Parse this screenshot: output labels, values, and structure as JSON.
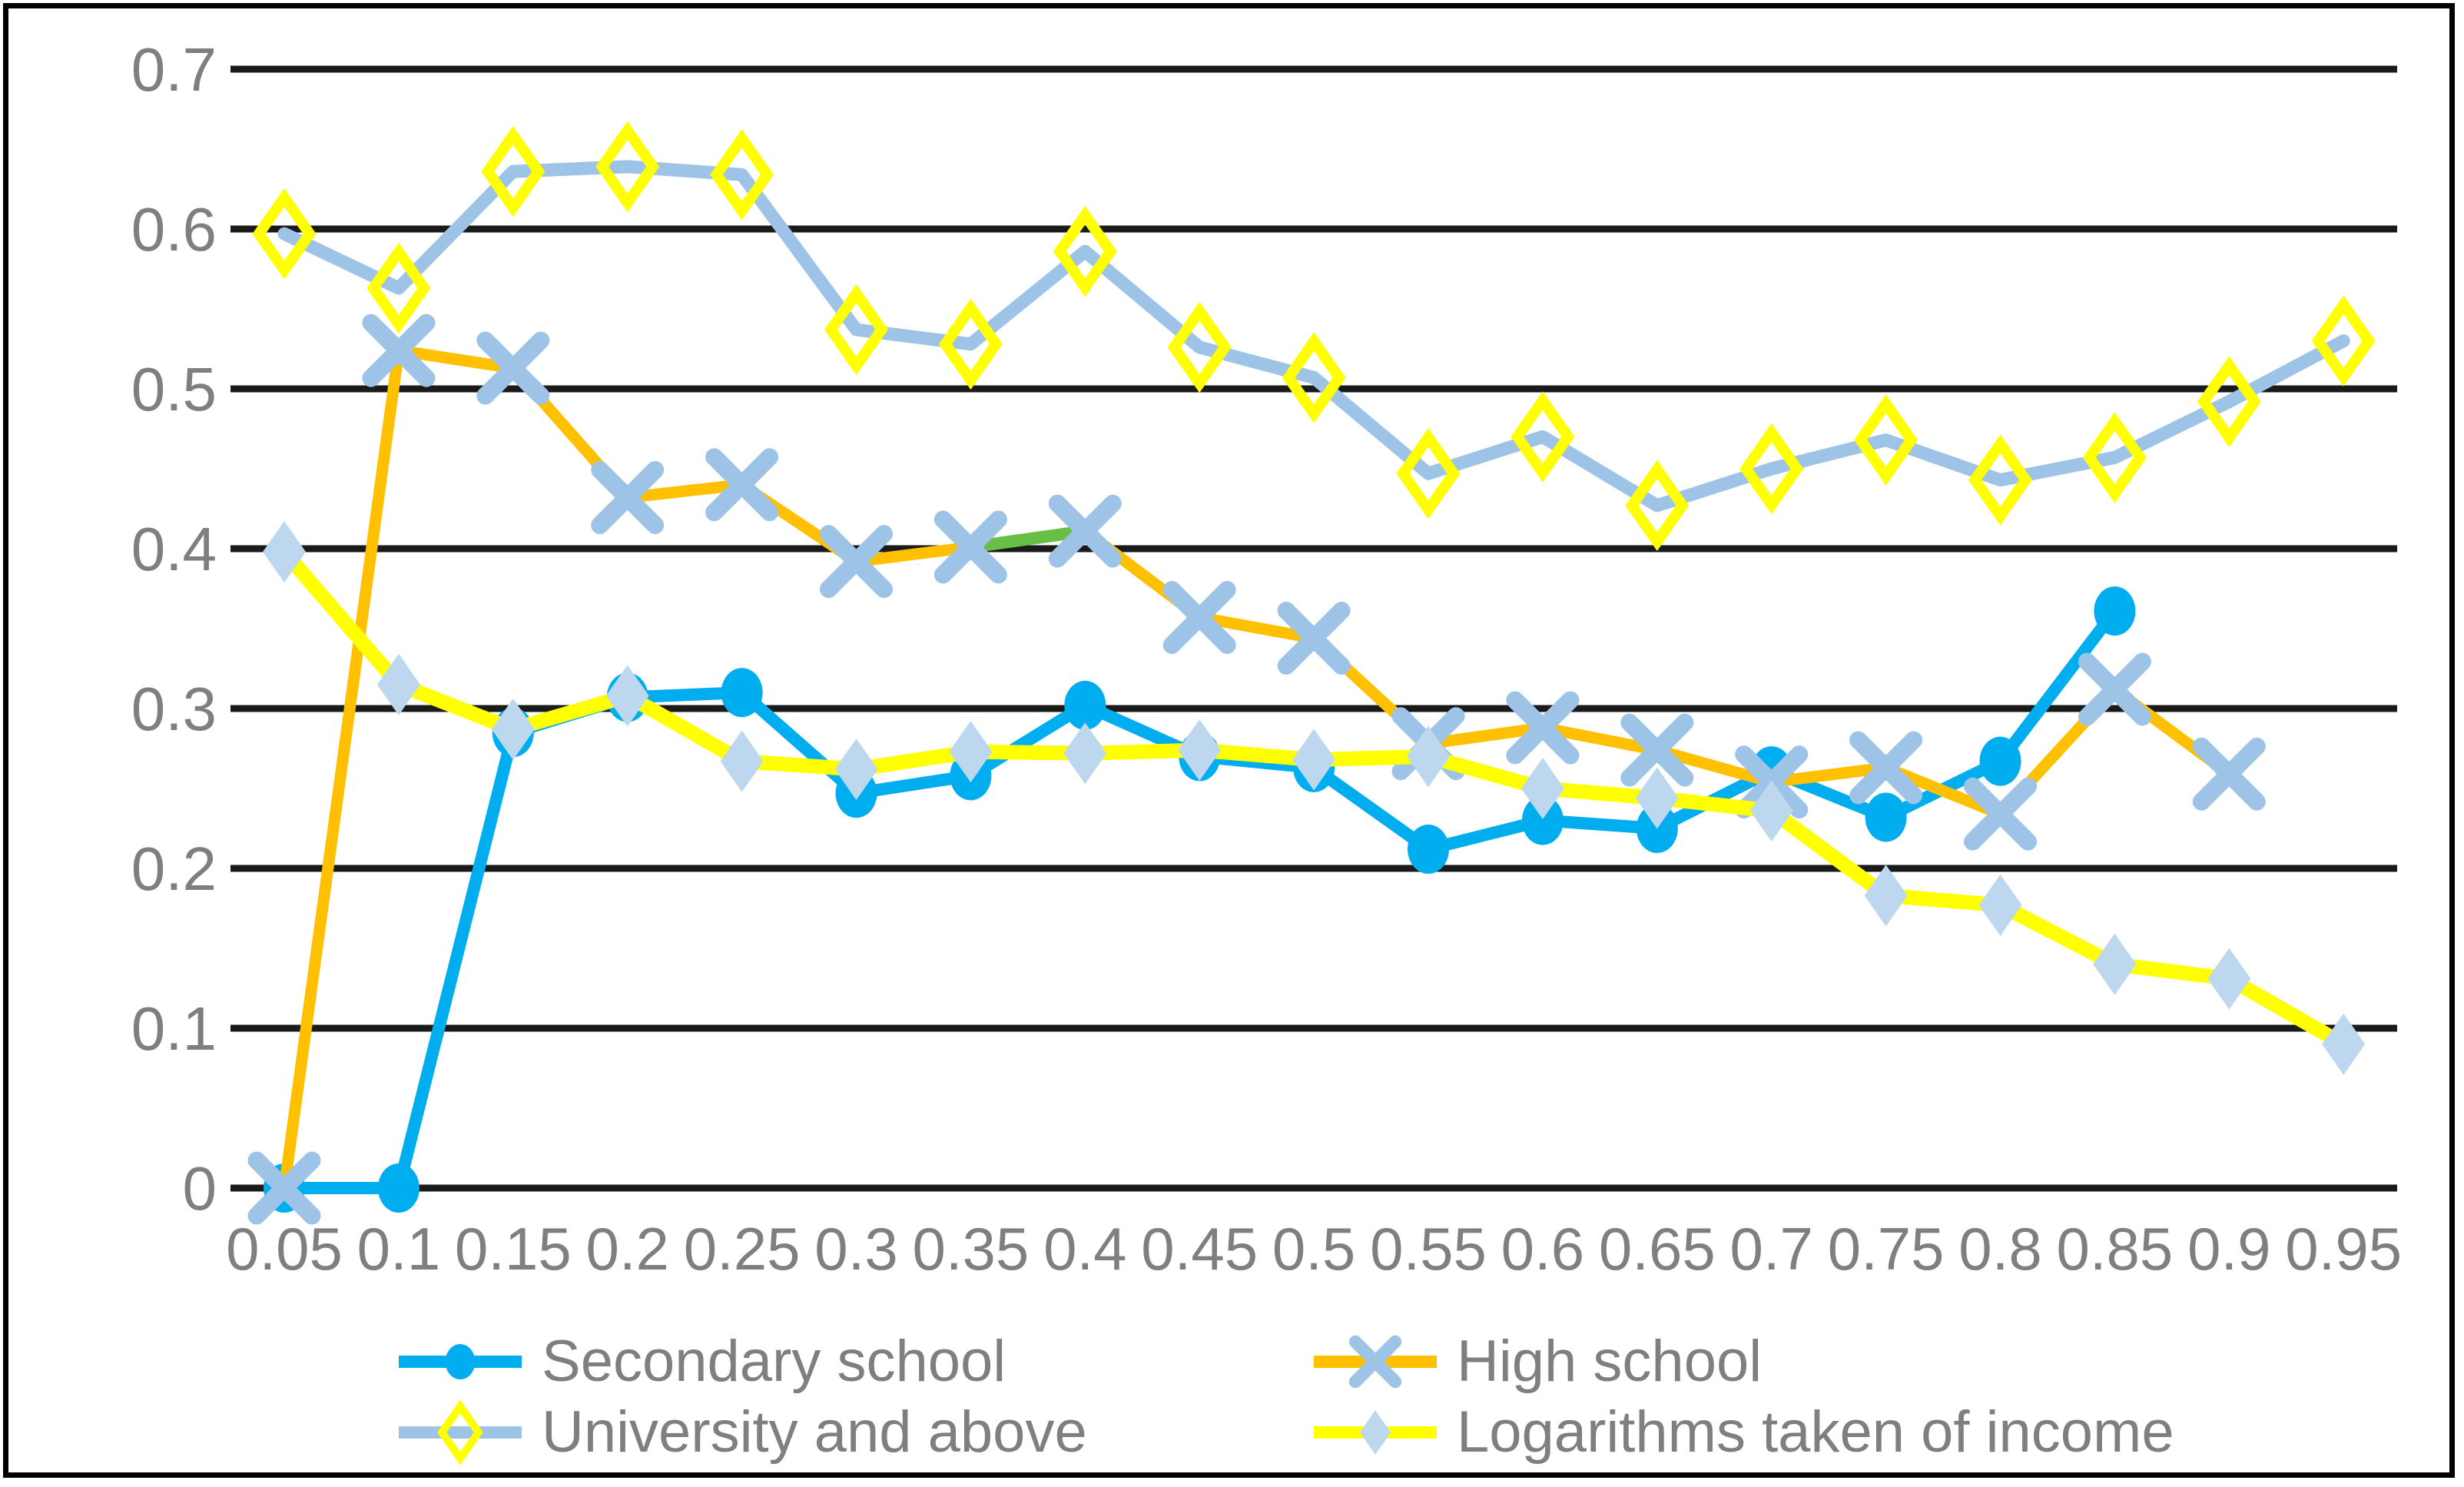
{
  "page": {
    "background_color": "#ffffff",
    "frame_border_color": "#000000"
  },
  "chart_data": {
    "type": "line",
    "title": "",
    "xlabel": "",
    "ylabel": "",
    "grid": "horizontal",
    "gridline_color": "#1a1a1a",
    "axis_text_color": "#7f7f7f",
    "legend_position": "bottom-two-columns",
    "ylim": [
      0,
      0.7
    ],
    "y_ticks": [
      0,
      0.1,
      0.2,
      0.3,
      0.4,
      0.5,
      0.6,
      0.7
    ],
    "y_tick_labels": [
      "0",
      "0.1",
      "0.2",
      "0.3",
      "0.4",
      "0.5",
      "0.6",
      "0.7"
    ],
    "x": [
      0.05,
      0.1,
      0.15,
      0.2,
      0.25,
      0.3,
      0.35,
      0.4,
      0.45,
      0.5,
      0.55,
      0.6,
      0.65,
      0.7,
      0.75,
      0.8,
      0.85,
      0.9,
      0.95
    ],
    "x_tick_labels": [
      "0.05",
      "0.1",
      "0.15",
      "0.2",
      "0.25",
      "0.3",
      "0.35",
      "0.4",
      "0.45",
      "0.5",
      "0.55",
      "0.6",
      "0.65",
      "0.7",
      "0.75",
      "0.8",
      "0.85",
      "0.9",
      "0.95"
    ],
    "series": [
      {
        "name": "Secondary school",
        "line_color": "#00AEEF",
        "marker": "circle",
        "marker_color": "#00AEEF",
        "line_width": 16,
        "values": [
          0,
          0,
          0.285,
          0.307,
          0.31,
          0.247,
          0.258,
          0.302,
          0.27,
          0.263,
          0.212,
          0.23,
          0.225,
          0.261,
          0.232,
          0.267,
          0.361,
          null,
          null
        ]
      },
      {
        "name": "High school",
        "line_color": "#FFC000",
        "marker": "x",
        "marker_color": "#9DC3E6",
        "line_width": 15,
        "values": [
          0,
          0.524,
          0.513,
          0.432,
          0.44,
          0.392,
          0.401,
          0.411,
          0.357,
          0.344,
          0.278,
          0.288,
          0.274,
          0.254,
          0.263,
          0.234,
          0.312,
          0.259,
          null
        ]
      },
      {
        "name": "University and above",
        "line_color": "#9DC3E6",
        "marker": "diamond-outline",
        "marker_color": "#FFFF00",
        "line_width": 17,
        "values": [
          0.597,
          0.563,
          0.636,
          0.639,
          0.634,
          0.537,
          0.528,
          0.586,
          0.526,
          0.507,
          0.447,
          0.47,
          0.427,
          0.45,
          0.468,
          0.443,
          0.457,
          0.492,
          0.53
        ]
      },
      {
        "name": "Logarithms taken of income",
        "line_color": "#FFFF00",
        "marker": "diamond",
        "marker_color": "#BDD7EE",
        "line_width": 19,
        "values": [
          0.398,
          0.315,
          0.287,
          0.308,
          0.267,
          0.262,
          0.273,
          0.272,
          0.274,
          0.268,
          0.27,
          0.25,
          0.244,
          0.236,
          0.183,
          0.177,
          0.14,
          0.131,
          0.09
        ]
      }
    ],
    "annotations": [
      {
        "name": "green-highlight-segment",
        "attached_to": "High school",
        "color": "#67BF45",
        "line_width": 16,
        "x_from": 0.35,
        "value_from": 0.401,
        "x_to": 0.4,
        "value_to": 0.411
      }
    ]
  }
}
